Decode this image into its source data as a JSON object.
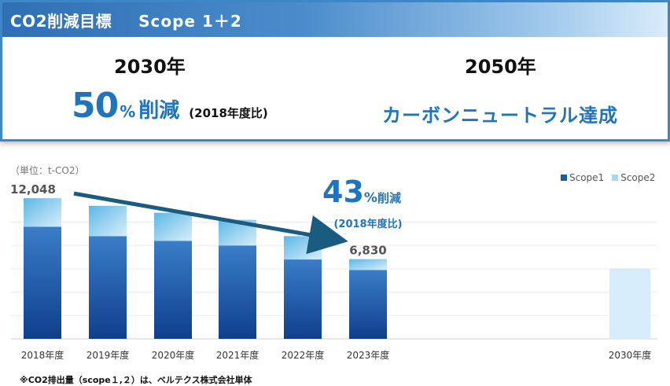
{
  "target": {
    "header_title": "CO2削減目標",
    "header_scope": "Scope 1＋2",
    "year_2030": "2030年",
    "year_2050": "2050年",
    "reduction_value": "50",
    "reduction_pct": "%",
    "reduction_word": "削減",
    "reduction_base": "(2018年度比)",
    "neutral_text": "カーボンニュートラル達成"
  },
  "colors": {
    "header_blue": "#2f6fb5",
    "accent_blue": "#1f74bd",
    "scope1": "#1a5aa8",
    "scope2": "#a9d6f0",
    "arrow": "#1a5c80",
    "target_bar": "#d6ecfa"
  },
  "chart_data": {
    "type": "bar",
    "stacked": true,
    "unit_label": "（単位：t-CO2）",
    "categories": [
      "2018年度",
      "2019年度",
      "2020年度",
      "2021年度",
      "2022年度",
      "2023年度",
      "2030年度"
    ],
    "series": [
      {
        "name": "Scope1",
        "values": [
          9600,
          8800,
          8400,
          8000,
          6800,
          5900,
          null
        ]
      },
      {
        "name": "Scope2",
        "values": [
          2448,
          2600,
          2400,
          2200,
          2000,
          930,
          null
        ]
      }
    ],
    "target_2030_total": 6024,
    "data_labels": [
      {
        "category": "2018年度",
        "text": "12,048"
      },
      {
        "category": "2023年度",
        "text": "6,830"
      }
    ],
    "annotation": {
      "value": "43",
      "pct": "%",
      "word": "削減",
      "base": "(2018年度比)"
    },
    "ylim": [
      0,
      13000
    ],
    "grid": true,
    "legend_position": "top-right"
  },
  "footnote": "※CO2排出量（scope１,２）は、ベルテクス株式会社単体"
}
